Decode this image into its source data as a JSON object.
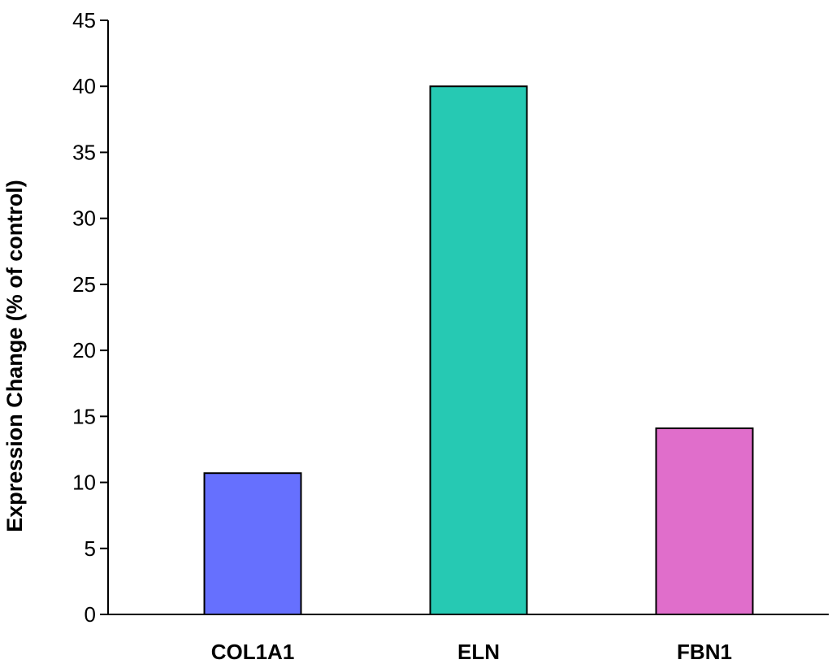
{
  "chart_data": {
    "type": "bar",
    "title": "",
    "xlabel": "",
    "ylabel": "Expression Change (% of control)",
    "categories": [
      "COL1A1",
      "ELN",
      "FBN1"
    ],
    "values": [
      10.7,
      40.0,
      14.1
    ],
    "colors": [
      "#6670fe",
      "#26c9b3",
      "#e06ecb"
    ],
    "ylim": [
      0,
      45
    ],
    "yticks": [
      0,
      5,
      10,
      15,
      20,
      25,
      30,
      35,
      40,
      45
    ],
    "grid": false,
    "legend": "none"
  }
}
